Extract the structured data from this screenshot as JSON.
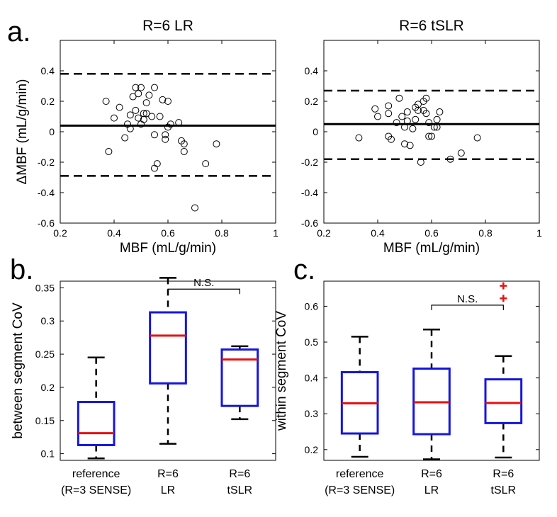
{
  "panel_labels": {
    "a": "a.",
    "b": "b.",
    "c": "c."
  },
  "chart_data": [
    {
      "type": "scatter",
      "panel": "a",
      "title": "R=6   LR",
      "xlabel": "MBF (mL/g/min)",
      "ylabel": "ΔMBF (mL/g/min)",
      "xlim": [
        0.2,
        1
      ],
      "ylim": [
        -0.6,
        0.6
      ],
      "xticks": [
        "0.2",
        "0.4",
        "0.6",
        "0.8",
        "1"
      ],
      "yticks": [
        "-0.6",
        "-0.4",
        "-0.2",
        "0",
        "0.2",
        "0.4"
      ],
      "mean_line": 0.04,
      "limits_of_agreement": [
        -0.29,
        0.38
      ],
      "points": [
        [
          0.37,
          0.2
        ],
        [
          0.38,
          -0.13
        ],
        [
          0.4,
          0.09
        ],
        [
          0.42,
          0.16
        ],
        [
          0.44,
          -0.04
        ],
        [
          0.45,
          0.05
        ],
        [
          0.46,
          0.11
        ],
        [
          0.46,
          0.02
        ],
        [
          0.47,
          0.23
        ],
        [
          0.48,
          0.29
        ],
        [
          0.48,
          0.14
        ],
        [
          0.49,
          0.09
        ],
        [
          0.49,
          0.25
        ],
        [
          0.5,
          0.05
        ],
        [
          0.5,
          0.29
        ],
        [
          0.51,
          0.12
        ],
        [
          0.51,
          0.08
        ],
        [
          0.52,
          0.12
        ],
        [
          0.52,
          0.19
        ],
        [
          0.53,
          0.24
        ],
        [
          0.54,
          0.1
        ],
        [
          0.55,
          -0.02
        ],
        [
          0.55,
          0.29
        ],
        [
          0.55,
          -0.24
        ],
        [
          0.56,
          -0.21
        ],
        [
          0.57,
          0.1
        ],
        [
          0.58,
          0.21
        ],
        [
          0.59,
          -0.02
        ],
        [
          0.59,
          -0.05
        ],
        [
          0.6,
          0.2
        ],
        [
          0.6,
          0.03
        ],
        [
          0.61,
          0.05
        ],
        [
          0.64,
          0.06
        ],
        [
          0.65,
          -0.06
        ],
        [
          0.66,
          -0.08
        ],
        [
          0.66,
          -0.13
        ],
        [
          0.7,
          -0.5
        ],
        [
          0.74,
          -0.21
        ],
        [
          0.78,
          -0.08
        ]
      ]
    },
    {
      "type": "scatter",
      "panel": "a",
      "title": "R=6    tSLR",
      "xlabel": "MBF (mL/g/min)",
      "ylabel": "",
      "xlim": [
        0.2,
        1
      ],
      "ylim": [
        -0.6,
        0.6
      ],
      "xticks": [
        "0.2",
        "0.4",
        "0.6",
        "0.8",
        "1"
      ],
      "yticks": [
        "-0.6",
        "-0.4",
        "-0.2",
        "0",
        "0.2",
        "0.4"
      ],
      "mean_line": 0.05,
      "limits_of_agreement": [
        -0.18,
        0.27
      ],
      "points": [
        [
          0.33,
          -0.04
        ],
        [
          0.39,
          0.15
        ],
        [
          0.4,
          0.1
        ],
        [
          0.44,
          0.12
        ],
        [
          0.44,
          0.17
        ],
        [
          0.44,
          -0.03
        ],
        [
          0.45,
          -0.05
        ],
        [
          0.47,
          0.06
        ],
        [
          0.48,
          0.22
        ],
        [
          0.49,
          0.1
        ],
        [
          0.5,
          -0.08
        ],
        [
          0.5,
          0.03
        ],
        [
          0.51,
          0.13
        ],
        [
          0.51,
          0.07
        ],
        [
          0.52,
          -0.09
        ],
        [
          0.53,
          0.02
        ],
        [
          0.54,
          0.16
        ],
        [
          0.54,
          0.08
        ],
        [
          0.55,
          0.18
        ],
        [
          0.55,
          0.14
        ],
        [
          0.56,
          -0.2
        ],
        [
          0.57,
          0.14
        ],
        [
          0.57,
          0.2
        ],
        [
          0.58,
          0.22
        ],
        [
          0.58,
          0.12
        ],
        [
          0.59,
          -0.03
        ],
        [
          0.59,
          0.06
        ],
        [
          0.6,
          -0.03
        ],
        [
          0.61,
          0.03
        ],
        [
          0.62,
          0.08
        ],
        [
          0.62,
          0.03
        ],
        [
          0.63,
          0.13
        ],
        [
          0.67,
          -0.18
        ],
        [
          0.71,
          -0.14
        ],
        [
          0.77,
          -0.04
        ]
      ]
    },
    {
      "type": "box",
      "panel": "b",
      "ylabel": "between segment CoV",
      "ylim": [
        0.09,
        0.36
      ],
      "yticks": [
        "0.1",
        "0.15",
        "0.2",
        "0.25",
        "0.3",
        "0.35"
      ],
      "categories": [
        {
          "line1": "reference",
          "line2": "(R=3 SENSE)"
        },
        {
          "line1": "R=6",
          "line2": "LR"
        },
        {
          "line1": "R=6",
          "line2": "tSLR"
        }
      ],
      "boxes": [
        {
          "min": 0.093,
          "q1": 0.113,
          "median": 0.131,
          "q3": 0.178,
          "max": 0.245,
          "outliers": []
        },
        {
          "min": 0.115,
          "q1": 0.206,
          "median": 0.278,
          "q3": 0.313,
          "max": 0.365,
          "outliers": []
        },
        {
          "min": 0.152,
          "q1": 0.172,
          "median": 0.242,
          "q3": 0.257,
          "max": 0.262,
          "outliers": []
        }
      ],
      "significance": {
        "between": [
          1,
          2
        ],
        "label": "N.S.",
        "level": 0.348
      },
      "box_color": "#1515e0",
      "median_color": "#e81010"
    },
    {
      "type": "box",
      "panel": "c",
      "ylabel": "within segment CoV",
      "ylim": [
        0.17,
        0.67
      ],
      "yticks": [
        "0.2",
        "0.3",
        "0.4",
        "0.5",
        "0.6"
      ],
      "categories": [
        {
          "line1": "reference",
          "line2": "(R=3 SENSE)"
        },
        {
          "line1": "R=6",
          "line2": "LR"
        },
        {
          "line1": "R=6",
          "line2": "tSLR"
        }
      ],
      "boxes": [
        {
          "min": 0.18,
          "q1": 0.245,
          "median": 0.329,
          "q3": 0.416,
          "max": 0.515,
          "outliers": []
        },
        {
          "min": 0.173,
          "q1": 0.243,
          "median": 0.332,
          "q3": 0.426,
          "max": 0.535,
          "outliers": []
        },
        {
          "min": 0.178,
          "q1": 0.274,
          "median": 0.33,
          "q3": 0.396,
          "max": 0.461,
          "outliers": [
            0.622,
            0.657
          ]
        }
      ],
      "significance": {
        "between": [
          1,
          2
        ],
        "label": "N.S.",
        "level": 0.603
      },
      "box_color": "#1515e0",
      "median_color": "#e81010",
      "outlier_color": "#e81010"
    }
  ]
}
